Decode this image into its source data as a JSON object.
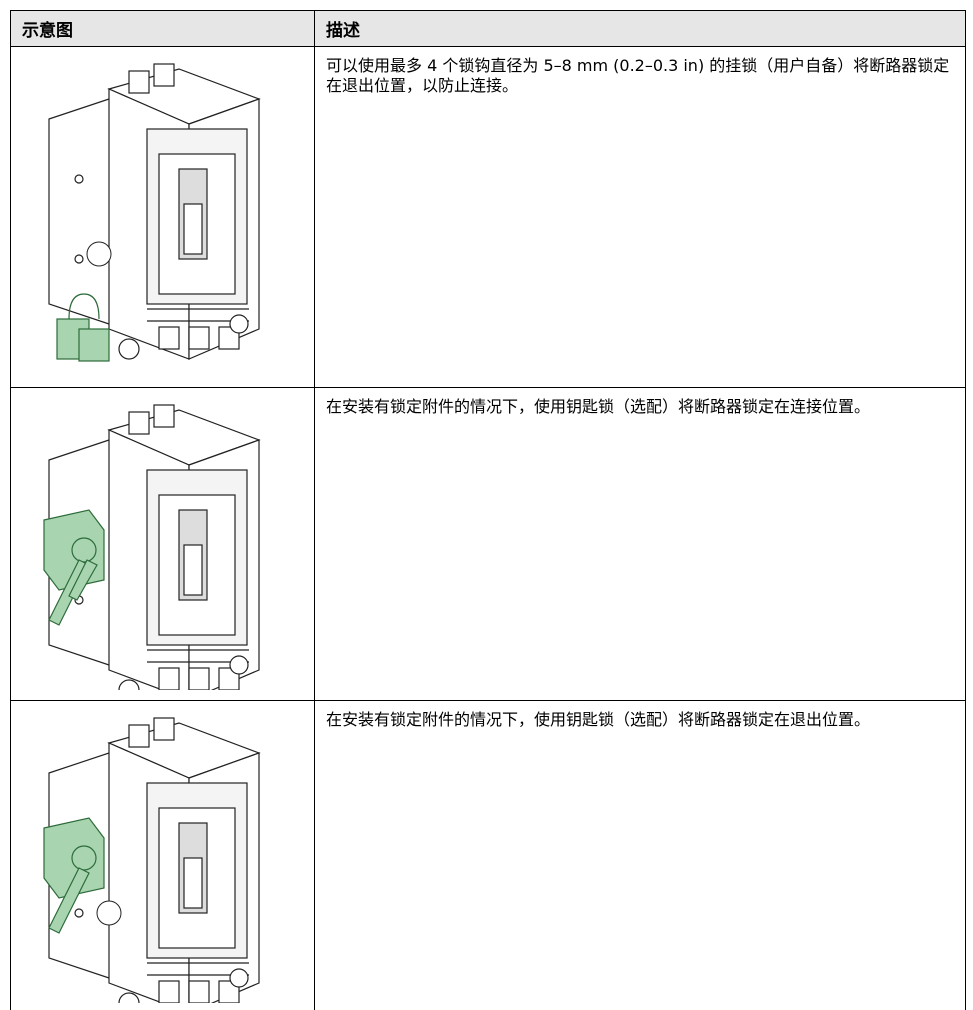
{
  "header": {
    "columns": [
      "示意图",
      "描述"
    ]
  },
  "rows": [
    {
      "description": "可以使用最多 4 个锁钩直径为 5–8 mm (0.2–0.3 in) 的挂锁（用户自备）将断路器锁定在退出位置，以防止连接。"
    },
    {
      "description": "在安装有锁定附件的情况下，使用钥匙锁（选配）将断路器锁定在连接位置。"
    },
    {
      "description": "在安装有锁定附件的情况下，使用钥匙锁（选配）将断路器锁定在退出位置。"
    }
  ]
}
